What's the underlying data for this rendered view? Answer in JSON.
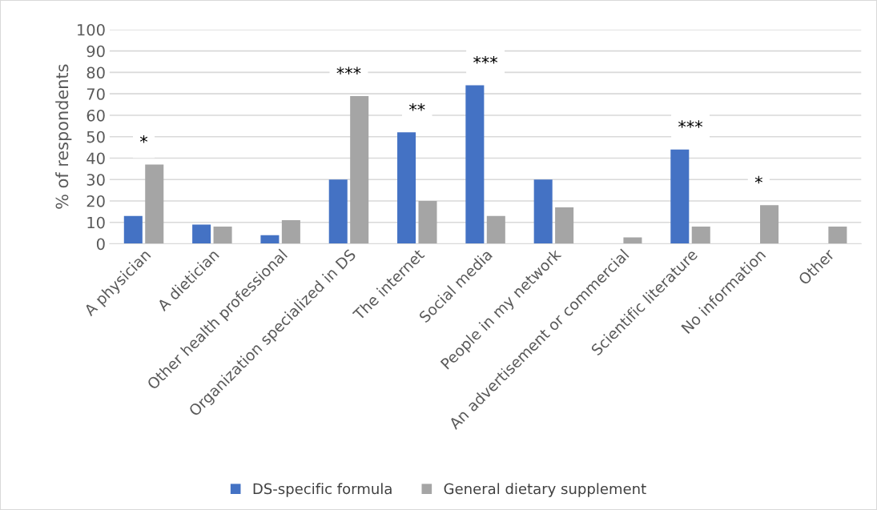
{
  "chart_data": {
    "type": "bar",
    "ylabel": "% of respondents",
    "categories": [
      "A physician",
      "A dietician",
      "Other health professional",
      "Organization specialized in DS",
      "The internet",
      "Social media",
      "People in my network",
      "An advertisement or commercial",
      "Scientific literature",
      "No information",
      "Other"
    ],
    "series": [
      {
        "name": "DS-specific formula",
        "color": "#4472c4",
        "values": [
          13,
          9,
          4,
          30,
          52,
          74,
          30,
          null,
          44,
          null,
          null
        ]
      },
      {
        "name": "General dietary supplement",
        "color": "#a5a5a5",
        "values": [
          37,
          8,
          11,
          69,
          20,
          13,
          17,
          3,
          8,
          18,
          8
        ]
      }
    ],
    "ylim": [
      0,
      100
    ],
    "yticks": [
      0,
      10,
      20,
      30,
      40,
      50,
      60,
      70,
      80,
      90,
      100
    ],
    "grid": "y",
    "legend": "bottom",
    "annotations": [
      "*",
      "***",
      "**",
      "***",
      "***",
      "*"
    ]
  }
}
